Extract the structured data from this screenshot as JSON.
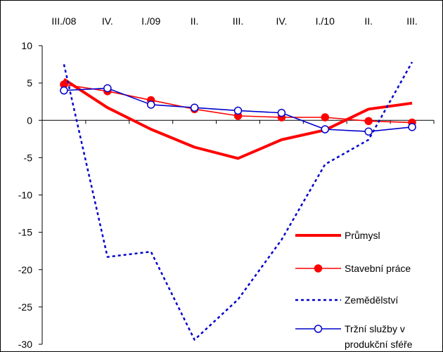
{
  "chart_data": {
    "type": "line",
    "categories": [
      "III./08",
      "IV.",
      "I./09",
      "II.",
      "III.",
      "IV.",
      "I./10",
      "II.",
      "III."
    ],
    "ylim": [
      -30,
      10
    ],
    "yticks": [
      10,
      5,
      0,
      -5,
      -10,
      -15,
      -20,
      -25,
      -30
    ],
    "xaxis_position": "top",
    "grid": false,
    "legend_position": "bottom-right",
    "series": [
      {
        "name": "Průmysl",
        "style": "thick-solid",
        "color": "#ff0000",
        "values": [
          5.5,
          1.7,
          -1.2,
          -3.6,
          -5.1,
          -2.6,
          -1.3,
          1.5,
          2.3
        ]
      },
      {
        "name": "Stavební práce",
        "style": "solid-filled-markers",
        "color": "#ff0000",
        "values": [
          4.8,
          3.9,
          2.7,
          1.5,
          0.6,
          0.4,
          0.4,
          -0.1,
          -0.3
        ]
      },
      {
        "name": "Zemědělství",
        "style": "dotted",
        "color": "#0000cc",
        "values": [
          7.5,
          -18.3,
          -17.6,
          -29.4,
          -24.0,
          -16.0,
          -5.9,
          -2.6,
          7.8
        ]
      },
      {
        "name": "Tržní služby v produkční sféře",
        "name_lines": [
          "Tržní služby v",
          "produkční sféře"
        ],
        "style": "solid-open-markers",
        "color": "#0000cc",
        "values": [
          4.0,
          4.3,
          2.1,
          1.7,
          1.3,
          1.0,
          -1.2,
          -1.5,
          -0.9
        ]
      }
    ]
  }
}
